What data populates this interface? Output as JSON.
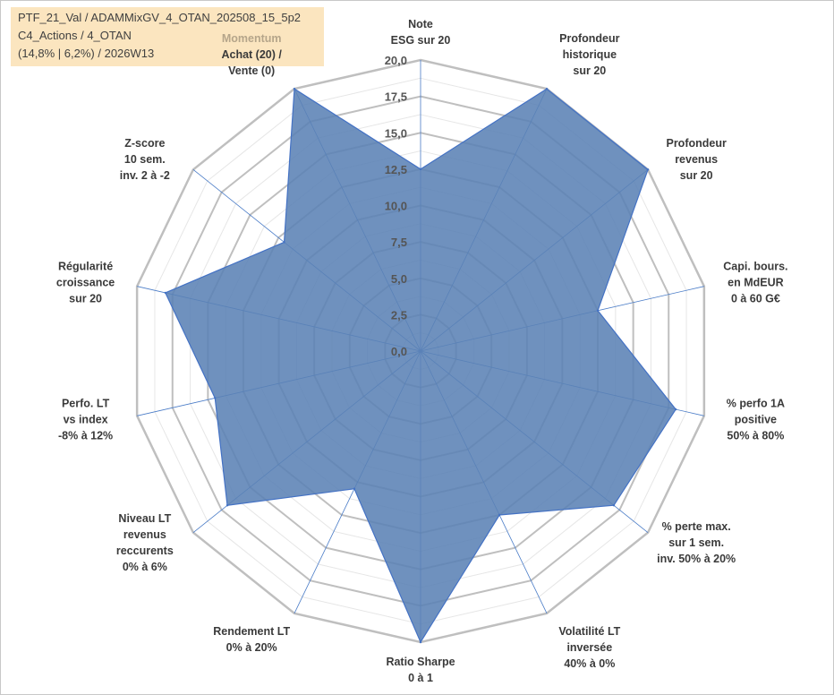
{
  "title": {
    "line1": "PTF_21_Val / ADAMMixGV_4_OTAN_202508_15_5p2",
    "line2": "C4_Actions / 4_OTAN",
    "line3": "(14,8% | 6,2%) / 2026W13"
  },
  "chart_data": {
    "type": "radar",
    "rlim": [
      0,
      20
    ],
    "tick_values": [
      0,
      2.5,
      5,
      7.5,
      10,
      12.5,
      15,
      17.5,
      20
    ],
    "tick_labels": [
      "0,0",
      "2,5",
      "5,0",
      "7,5",
      "10,0",
      "12,5",
      "15,0",
      "17,5",
      "20,0"
    ],
    "grid": true,
    "axes": [
      {
        "label": [
          "Note",
          "ESG sur 20"
        ]
      },
      {
        "label": [
          "Profondeur",
          "historique",
          "sur 20"
        ]
      },
      {
        "label": [
          "Profondeur",
          "revenus",
          "sur 20"
        ]
      },
      {
        "label": [
          "Capi. bours.",
          "en MdEUR",
          "0 à 60 G€"
        ]
      },
      {
        "label": [
          "% perfo 1A",
          "positive",
          "50% à 80%"
        ]
      },
      {
        "label": [
          "% perte max.",
          "sur 1 sem.",
          "inv. 50% à 20%"
        ]
      },
      {
        "label": [
          "Volatilité LT",
          "inversée",
          "40% à 0%"
        ]
      },
      {
        "label": [
          "Ratio Sharpe",
          "0 à 1"
        ]
      },
      {
        "label": [
          "Rendement LT",
          "0% à 20%"
        ]
      },
      {
        "label": [
          "Niveau LT",
          "revenus",
          "reccurents",
          "0% à 6%"
        ]
      },
      {
        "label": [
          "Perfo. LT",
          "vs index",
          "-8% à 12%"
        ]
      },
      {
        "label": [
          "Régularité",
          "croissance",
          "sur 20"
        ]
      },
      {
        "label": [
          "Z-score",
          "10 sem.",
          "inv. 2 à -2"
        ]
      },
      {
        "label": [
          "Achat (20) /",
          "Vente (0)"
        ],
        "header": "Momentum"
      }
    ],
    "series": [
      {
        "values": [
          12.5,
          20,
          20,
          12.5,
          18,
          17,
          12.5,
          20,
          10.5,
          17,
          14.5,
          18,
          12,
          20
        ]
      }
    ],
    "colors": {
      "fill": "#5b82b5",
      "stroke": "#4472c4",
      "grid": "#bfbfbf",
      "spoke": "#4a7cc7"
    }
  }
}
